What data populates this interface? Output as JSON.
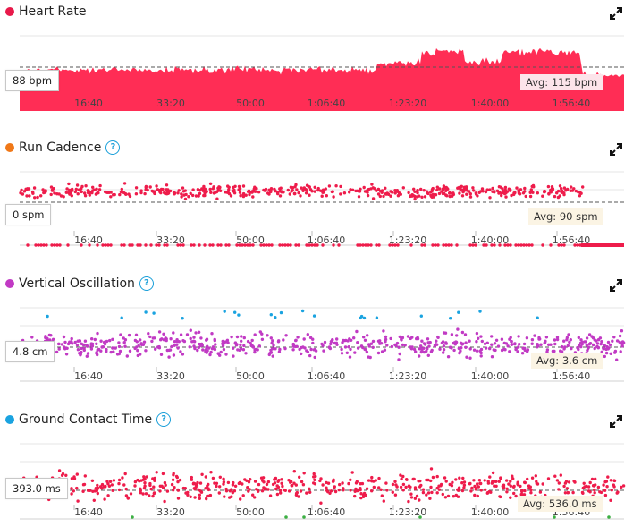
{
  "panels": [
    {
      "id": "hr",
      "title": "Heart Rate",
      "color": "#e8194a",
      "help": false,
      "value": "88 bpm",
      "avg": "Avg: 115 bpm"
    },
    {
      "id": "cad",
      "title": "Run Cadence",
      "color": "#f07818",
      "help": true,
      "value": "0 spm",
      "avg": "Avg: 90 spm"
    },
    {
      "id": "vo",
      "title": "Vertical Oscillation",
      "color": "#c13ac4",
      "help": true,
      "value": "4.8 cm",
      "avg": "Avg: 3.6 cm"
    },
    {
      "id": "gct",
      "title": "Ground Contact Time",
      "color": "#1aa3e0",
      "help": true,
      "value": "393.0 ms",
      "avg": "Avg: 536.0 ms"
    }
  ],
  "help_glyph": "?",
  "icons": {
    "expand": "expand-icon",
    "help": "help-icon"
  },
  "x_ticks": [
    "16:40",
    "33:20",
    "50:00",
    "1:06:40",
    "1:23:20",
    "1:40:00",
    "1:56:40"
  ],
  "series_colors": {
    "hr": "#ff2d55",
    "cadence": "#ee1c4b",
    "vo": "#c13ac4",
    "vo_high": "#1aa3e0",
    "gct": "#ee1c4b",
    "gct_low": "#3cb043"
  }
}
